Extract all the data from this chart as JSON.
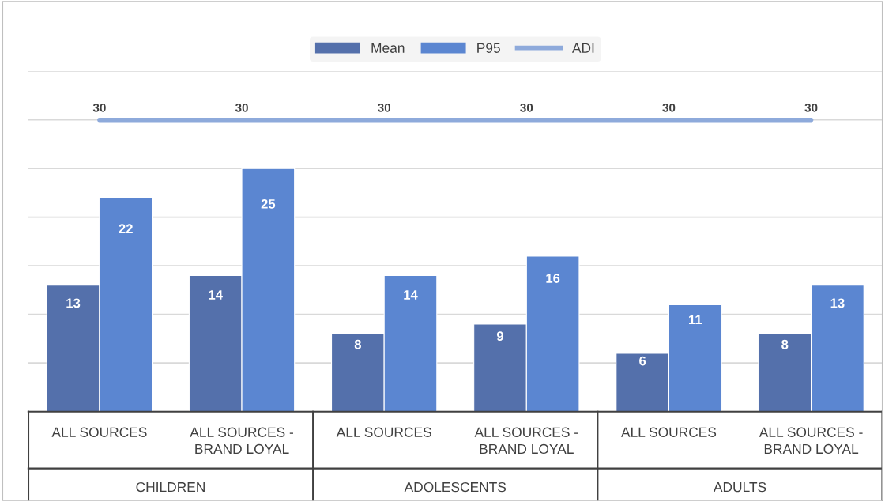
{
  "chart_data": {
    "type": "bar",
    "categories": [
      "ALL SOURCES",
      "ALL SOURCES - BRAND LOYAL",
      "ALL SOURCES",
      "ALL SOURCES - BRAND LOYAL",
      "ALL SOURCES",
      "ALL SOURCES - BRAND LOYAL"
    ],
    "series": [
      {
        "name": "Mean",
        "color": "#5470ab",
        "values": [
          13,
          14,
          8,
          9,
          6,
          8
        ]
      },
      {
        "name": "P95",
        "color": "#5b86d1",
        "values": [
          22,
          25,
          14,
          16,
          11,
          13
        ]
      },
      {
        "name": "ADI",
        "type": "line",
        "color": "#8eaadb",
        "values": [
          30,
          30,
          30,
          30,
          30,
          30
        ]
      }
    ],
    "annotations": [
      "CHILDREN",
      "ADOLESCENTS",
      "ADULTS"
    ],
    "data_labels": true,
    "ylim": [
      0,
      35
    ],
    "yticks": [
      {
        "value": 0,
        "label": null
      },
      {
        "value": 5,
        "label": null
      },
      {
        "value": 10,
        "label": null
      },
      {
        "value": 15,
        "label": null
      },
      {
        "value": 20,
        "label": null
      },
      {
        "value": 25,
        "label": null
      },
      {
        "value": 30,
        "label": null
      },
      {
        "value": 35,
        "label": null
      }
    ],
    "grid": "y",
    "legend": "top",
    "tick_labels": "x"
  }
}
